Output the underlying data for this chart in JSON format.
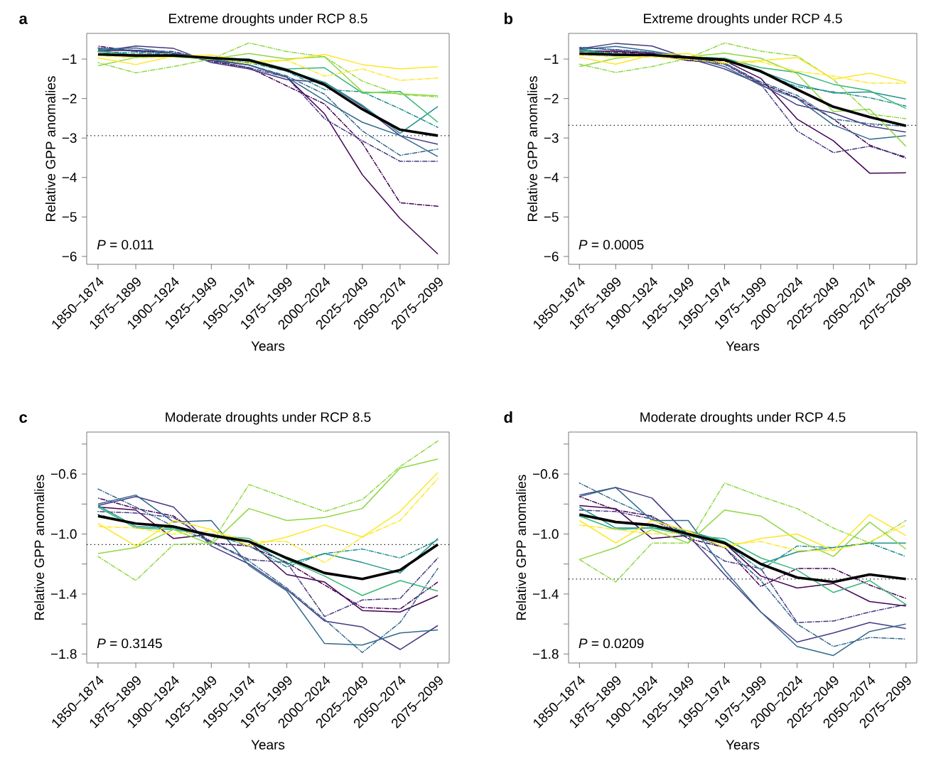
{
  "chart_data": [
    {
      "type": "line",
      "title": "Extreme droughts under RCP 8.5",
      "xlabel": "Years",
      "ylabel": "Relative GPP anomalies",
      "annotations": [
        "a",
        "*P* = 0.011"
      ],
      "categories": [
        "1850–1874",
        "1875–1899",
        "1900–1924",
        "1925–1949",
        "1950–1974",
        "1975–1999",
        "2000–2024",
        "2025–2049",
        "2050–2074",
        "2075–2099"
      ],
      "ylim": [
        -6.2,
        -0.35
      ],
      "yticks": [
        {
          "value": -1,
          "label": "−1"
        },
        {
          "value": -2,
          "label": "−2"
        },
        {
          "value": -3,
          "label": "−3"
        },
        {
          "value": -4,
          "label": "−4"
        },
        {
          "value": -5,
          "label": "−5"
        },
        {
          "value": -6,
          "label": "−6"
        }
      ],
      "ref_lines": [
        {
          "axis": "y",
          "value": -2.94,
          "line_style": "dotted",
          "color": "#000000"
        }
      ],
      "series": [
        {
          "color": "#440154",
          "line_style": "solid",
          "values": [
            -0.78,
            -0.78,
            -0.85,
            -1.03,
            -1.15,
            -1.46,
            -2.39,
            -3.93,
            -5.04,
            -5.94
          ]
        },
        {
          "color": "#440154",
          "line_style": "dashdot",
          "values": [
            -0.67,
            -0.81,
            -0.85,
            -1.06,
            -1.22,
            -1.68,
            -2.14,
            -3.13,
            -4.64,
            -4.73
          ]
        },
        {
          "color": "#443A83",
          "line_style": "solid",
          "values": [
            -0.81,
            -0.67,
            -0.73,
            -1.09,
            -1.25,
            -1.52,
            -1.59,
            -2.2,
            -2.94,
            -3.16
          ]
        },
        {
          "color": "#443A83",
          "line_style": "dashdot",
          "values": [
            -0.72,
            -0.78,
            -0.81,
            -1.03,
            -1.22,
            -1.46,
            -2.51,
            -3.07,
            -3.59,
            -3.59
          ]
        },
        {
          "color": "#31688E",
          "line_style": "solid",
          "values": [
            -0.75,
            -0.72,
            -0.85,
            -1.0,
            -1.15,
            -1.46,
            -2.05,
            -2.6,
            -2.94,
            -3.47
          ]
        },
        {
          "color": "#31688E",
          "line_style": "dashdot",
          "values": [
            -0.72,
            -0.81,
            -0.85,
            -1.03,
            -1.15,
            -1.43,
            -1.89,
            -2.82,
            -3.44,
            -3.28
          ]
        },
        {
          "color": "#21908C",
          "line_style": "solid",
          "values": [
            -0.78,
            -0.91,
            -0.91,
            -0.97,
            -1.0,
            -1.28,
            -1.59,
            -2.17,
            -2.88,
            -2.2
          ]
        },
        {
          "color": "#21908C",
          "line_style": "dashdot",
          "values": [
            -0.81,
            -0.85,
            -0.88,
            -1.0,
            -1.09,
            -1.31,
            -1.77,
            -1.83,
            -2.26,
            -2.73
          ]
        },
        {
          "color": "#35B779",
          "line_style": "solid",
          "values": [
            -0.81,
            -0.96,
            -0.94,
            -1.0,
            -1.0,
            -1.25,
            -1.22,
            -1.86,
            -1.82,
            -2.6
          ]
        },
        {
          "color": "#8FD744",
          "line_style": "solid",
          "values": [
            -1.17,
            -0.96,
            -0.94,
            -1.0,
            -0.86,
            -1.0,
            -0.94,
            -1.83,
            -1.88,
            -1.93
          ]
        },
        {
          "color": "#8FD744",
          "line_style": "dashdot",
          "values": [
            -1.09,
            -1.35,
            -1.19,
            -1.0,
            -0.59,
            -0.81,
            -0.94,
            -1.56,
            -1.9,
            -1.96
          ]
        },
        {
          "color": "#FDE725",
          "line_style": "solid",
          "values": [
            -0.97,
            -1.14,
            -0.92,
            -0.9,
            -1.06,
            -1.03,
            -0.88,
            -1.14,
            -1.25,
            -1.19
          ]
        },
        {
          "color": "#FDE725",
          "line_style": "dashdot",
          "values": [
            -0.91,
            -0.97,
            -0.94,
            -0.97,
            -1.12,
            -1.03,
            -1.43,
            -1.25,
            -1.54,
            -1.48
          ]
        },
        {
          "color": "#000000",
          "line_style": "solid",
          "values": [
            -0.88,
            -0.91,
            -0.91,
            -0.97,
            -1.03,
            -1.28,
            -1.65,
            -2.27,
            -2.79,
            -2.94
          ]
        }
      ]
    },
    {
      "type": "line",
      "title": "Extreme droughts under RCP 4.5",
      "xlabel": "Years",
      "ylabel": "Relative GPP anomalies",
      "annotations": [
        "b",
        "*P* = 0.0005"
      ],
      "categories": [
        "1850–1874",
        "1875–1899",
        "1900–1924",
        "1925–1949",
        "1950–1974",
        "1975–1999",
        "2000–2024",
        "2025–2049",
        "2050–2074",
        "2075–2099"
      ],
      "ylim": [
        -6.2,
        -0.35
      ],
      "yticks": [
        {
          "value": -1,
          "label": "−1"
        },
        {
          "value": -2,
          "label": "−2"
        },
        {
          "value": -3,
          "label": "−3"
        },
        {
          "value": -4,
          "label": "−4"
        },
        {
          "value": -5,
          "label": "−5"
        },
        {
          "value": -6,
          "label": "−6"
        }
      ],
      "ref_lines": [
        {
          "axis": "y",
          "value": -2.68,
          "line_style": "dotted",
          "color": "#000000"
        }
      ],
      "series": [
        {
          "color": "#440154",
          "line_style": "solid",
          "values": [
            -0.8,
            -0.8,
            -0.86,
            -1.04,
            -1.04,
            -1.49,
            -2.52,
            -3.07,
            -3.89,
            -3.88
          ]
        },
        {
          "color": "#440154",
          "line_style": "dashdot",
          "values": [
            -0.77,
            -0.83,
            -0.86,
            -1.04,
            -1.1,
            -1.61,
            -1.98,
            -2.52,
            -3.18,
            -3.51
          ]
        },
        {
          "color": "#443A83",
          "line_style": "solid",
          "values": [
            -0.74,
            -0.6,
            -0.67,
            -0.98,
            -1.25,
            -1.64,
            -2.16,
            -2.37,
            -2.7,
            -2.85
          ]
        },
        {
          "color": "#443A83",
          "line_style": "dashdot",
          "values": [
            -0.71,
            -0.77,
            -0.83,
            -1.01,
            -1.13,
            -1.64,
            -2.82,
            -3.37,
            -3.21,
            -3.48
          ]
        },
        {
          "color": "#31688E",
          "line_style": "solid",
          "values": [
            -0.76,
            -0.68,
            -0.8,
            -0.95,
            -1.19,
            -1.67,
            -2.0,
            -2.67,
            -3.03,
            -2.94
          ]
        },
        {
          "color": "#31688E",
          "line_style": "dashdot",
          "values": [
            -0.7,
            -0.76,
            -0.83,
            -0.98,
            -1.1,
            -1.58,
            -1.92,
            -2.52,
            -2.64,
            -2.7
          ]
        },
        {
          "color": "#21908C",
          "line_style": "solid",
          "values": [
            -0.77,
            -0.89,
            -0.89,
            -0.95,
            -0.98,
            -1.31,
            -1.64,
            -1.86,
            -1.83,
            -2.01
          ]
        },
        {
          "color": "#21908C",
          "line_style": "dashdot",
          "values": [
            -0.76,
            -0.86,
            -0.9,
            -0.98,
            -1.01,
            -1.34,
            -1.7,
            -1.83,
            -1.98,
            -2.19
          ]
        },
        {
          "color": "#35B779",
          "line_style": "solid",
          "values": [
            -0.78,
            -0.92,
            -0.89,
            -0.95,
            -0.98,
            -1.22,
            -1.34,
            -1.64,
            -1.8,
            -2.25
          ]
        },
        {
          "color": "#8FD744",
          "line_style": "solid",
          "values": [
            -1.19,
            -0.98,
            -0.89,
            -0.94,
            -0.85,
            -0.98,
            -1.37,
            -2.33,
            -2.27,
            -3.21
          ]
        },
        {
          "color": "#8FD744",
          "line_style": "dashdot",
          "values": [
            -1.13,
            -1.34,
            -1.19,
            -0.98,
            -0.59,
            -0.8,
            -0.92,
            -1.52,
            -2.39,
            -2.51
          ]
        },
        {
          "color": "#FDE725",
          "line_style": "solid",
          "values": [
            -0.96,
            -1.13,
            -0.9,
            -0.86,
            -1.1,
            -1.04,
            -0.96,
            -1.51,
            -1.36,
            -1.58
          ]
        },
        {
          "color": "#FDE725",
          "line_style": "dashdot",
          "values": [
            -0.9,
            -0.94,
            -0.95,
            -1.01,
            -1.1,
            -1.07,
            -1.31,
            -1.43,
            -1.61,
            -1.61
          ]
        },
        {
          "color": "#000000",
          "line_style": "solid",
          "values": [
            -0.86,
            -0.89,
            -0.9,
            -0.96,
            -1.02,
            -1.31,
            -1.77,
            -2.21,
            -2.47,
            -2.69
          ]
        }
      ]
    },
    {
      "type": "line",
      "title": "Moderate droughts under RCP 8.5",
      "xlabel": "Years",
      "ylabel": "Relative GPP anomalies",
      "annotations": [
        "c",
        "*P* = 0.3145"
      ],
      "categories": [
        "1850–1874",
        "1875–1899",
        "1900–1924",
        "1925–1949",
        "1950–1974",
        "1975–1999",
        "2000–2024",
        "2025–2049",
        "2050–2074",
        "2075–2099"
      ],
      "ylim": [
        -1.86,
        -0.32
      ],
      "yticks": [
        {
          "value": -0.4,
          "label": null
        },
        {
          "value": -0.6,
          "label": "−0.6"
        },
        {
          "value": -0.8,
          "label": null
        },
        {
          "value": -1.0,
          "label": "−1.0"
        },
        {
          "value": -1.2,
          "label": null
        },
        {
          "value": -1.4,
          "label": "−1.4"
        },
        {
          "value": -1.6,
          "label": null
        },
        {
          "value": -1.8,
          "label": "−1.8"
        }
      ],
      "ref_lines": [
        {
          "axis": "y",
          "value": -1.07,
          "line_style": "dotted",
          "color": "#000000"
        }
      ],
      "series": [
        {
          "color": "#440154",
          "line_style": "solid",
          "values": [
            -0.82,
            -0.84,
            -1.03,
            -1.0,
            -1.05,
            -1.27,
            -1.32,
            -1.51,
            -1.52,
            -1.41
          ]
        },
        {
          "color": "#440154",
          "line_style": "dashdot",
          "values": [
            -0.76,
            -0.83,
            -0.88,
            -1.06,
            -1.08,
            -1.19,
            -1.34,
            -1.49,
            -1.5,
            -1.32
          ]
        },
        {
          "color": "#443A83",
          "line_style": "solid",
          "values": [
            -0.81,
            -0.75,
            -0.82,
            -1.08,
            -1.2,
            -1.37,
            -1.58,
            -1.62,
            -1.77,
            -1.61
          ]
        },
        {
          "color": "#443A83",
          "line_style": "dashdot",
          "values": [
            -0.85,
            -0.86,
            -0.89,
            -1.05,
            -1.17,
            -1.19,
            -1.55,
            -1.44,
            -1.43,
            -1.16
          ]
        },
        {
          "color": "#31688E",
          "line_style": "solid",
          "values": [
            -0.8,
            -0.74,
            -0.92,
            -0.91,
            -1.21,
            -1.38,
            -1.73,
            -1.74,
            -1.66,
            -1.64
          ]
        },
        {
          "color": "#31688E",
          "line_style": "dashdot",
          "values": [
            -0.7,
            -0.82,
            -0.95,
            -1.05,
            -1.18,
            -1.36,
            -1.57,
            -1.79,
            -1.59,
            -1.23
          ]
        },
        {
          "color": "#21908C",
          "line_style": "solid",
          "values": [
            -0.81,
            -0.95,
            -0.96,
            -1.01,
            -1.05,
            -1.2,
            -1.13,
            -1.19,
            -1.26,
            -1.03
          ]
        },
        {
          "color": "#21908C",
          "line_style": "dashdot",
          "values": [
            -0.87,
            -0.93,
            -0.96,
            -1.0,
            -1.08,
            -1.22,
            -1.13,
            -1.1,
            -1.16,
            -1.04
          ]
        },
        {
          "color": "#35B779",
          "line_style": "solid",
          "values": [
            -0.82,
            -0.96,
            -0.97,
            -1.01,
            -1.03,
            -1.17,
            -1.28,
            -1.41,
            -1.31,
            -1.38
          ]
        },
        {
          "color": "#8FD744",
          "line_style": "solid",
          "values": [
            -1.13,
            -1.09,
            -0.97,
            -1.07,
            -0.83,
            -0.91,
            -0.89,
            -0.83,
            -0.56,
            -0.5
          ]
        },
        {
          "color": "#8FD744",
          "line_style": "dashdot",
          "values": [
            -1.15,
            -1.31,
            -1.07,
            -1.06,
            -0.67,
            -0.76,
            -0.85,
            -0.77,
            -0.55,
            -0.38
          ]
        },
        {
          "color": "#FDE725",
          "line_style": "solid",
          "values": [
            -0.93,
            -1.08,
            -0.91,
            -0.97,
            -1.08,
            -1.02,
            -0.94,
            -1.02,
            -0.85,
            -0.59
          ]
        },
        {
          "color": "#FDE725",
          "line_style": "dashdot",
          "values": [
            -0.95,
            -0.96,
            -1.0,
            -0.98,
            -1.05,
            -1.05,
            -1.19,
            -1.02,
            -0.91,
            -0.63
          ]
        },
        {
          "color": "#000000",
          "line_style": "solid",
          "values": [
            -0.88,
            -0.93,
            -0.95,
            -1.01,
            -1.05,
            -1.16,
            -1.26,
            -1.3,
            -1.24,
            -1.07
          ]
        }
      ]
    },
    {
      "type": "line",
      "title": "Moderate droughts under RCP 4.5",
      "xlabel": "Years",
      "ylabel": "Relative GPP anomalies",
      "annotations": [
        "d",
        "*P* = 0.0209"
      ],
      "categories": [
        "1850–1874",
        "1875–1899",
        "1900–1924",
        "1925–1949",
        "1950–1974",
        "1975–1999",
        "2000–2024",
        "2025–2049",
        "2050–2074",
        "2075–2099"
      ],
      "ylim": [
        -1.86,
        -0.32
      ],
      "yticks": [
        {
          "value": -0.4,
          "label": null
        },
        {
          "value": -0.6,
          "label": "−0.6"
        },
        {
          "value": -0.8,
          "label": null
        },
        {
          "value": -1.0,
          "label": "−1.0"
        },
        {
          "value": -1.2,
          "label": null
        },
        {
          "value": -1.4,
          "label": "−1.4"
        },
        {
          "value": -1.6,
          "label": null
        },
        {
          "value": -1.8,
          "label": "−1.8"
        }
      ],
      "ref_lines": [
        {
          "axis": "y",
          "value": -1.3,
          "line_style": "dotted",
          "color": "#000000"
        }
      ],
      "series": [
        {
          "color": "#440154",
          "line_style": "solid",
          "values": [
            -0.81,
            -0.83,
            -1.03,
            -1.01,
            -1.06,
            -1.28,
            -1.36,
            -1.33,
            -1.45,
            -1.48
          ]
        },
        {
          "color": "#440154",
          "line_style": "dashdot",
          "values": [
            -0.75,
            -0.84,
            -0.88,
            -1.03,
            -1.09,
            -1.35,
            -1.23,
            -1.23,
            -1.34,
            -1.43
          ]
        },
        {
          "color": "#443A83",
          "line_style": "solid",
          "values": [
            -0.74,
            -0.69,
            -0.76,
            -1.01,
            -1.27,
            -1.52,
            -1.72,
            -1.66,
            -1.59,
            -1.63
          ]
        },
        {
          "color": "#443A83",
          "line_style": "dashdot",
          "values": [
            -0.84,
            -0.85,
            -0.9,
            -1.03,
            -1.18,
            -1.23,
            -1.59,
            -1.58,
            -1.52,
            -1.47
          ]
        },
        {
          "color": "#31688E",
          "line_style": "solid",
          "values": [
            -0.75,
            -0.69,
            -0.91,
            -0.91,
            -1.24,
            -1.52,
            -1.75,
            -1.81,
            -1.65,
            -1.6
          ]
        },
        {
          "color": "#31688E",
          "line_style": "dashdot",
          "values": [
            -0.66,
            -0.78,
            -0.89,
            -1.0,
            -1.09,
            -1.31,
            -1.6,
            -1.75,
            -1.69,
            -1.7
          ]
        },
        {
          "color": "#21908C",
          "line_style": "solid",
          "values": [
            -0.82,
            -0.96,
            -0.96,
            -0.98,
            -1.05,
            -1.2,
            -1.12,
            -1.09,
            -1.06,
            -1.06
          ]
        },
        {
          "color": "#21908C",
          "line_style": "dashdot",
          "values": [
            -0.88,
            -0.92,
            -0.95,
            -0.98,
            -1.06,
            -1.24,
            -1.08,
            -1.09,
            -1.06,
            -1.15
          ]
        },
        {
          "color": "#35B779",
          "line_style": "solid",
          "values": [
            -0.88,
            -0.97,
            -0.96,
            -1.01,
            -1.03,
            -1.16,
            -1.24,
            -1.39,
            -1.31,
            -1.47
          ]
        },
        {
          "color": "#8FD744",
          "line_style": "solid",
          "values": [
            -1.17,
            -1.09,
            -0.97,
            -1.06,
            -0.84,
            -0.88,
            -1.04,
            -1.15,
            -0.92,
            -1.1
          ]
        },
        {
          "color": "#8FD744",
          "line_style": "dashdot",
          "values": [
            -1.17,
            -1.32,
            -1.06,
            -1.06,
            -0.66,
            -0.75,
            -0.83,
            -0.96,
            -1.06,
            -0.91
          ]
        },
        {
          "color": "#FDE725",
          "line_style": "solid",
          "values": [
            -0.91,
            -1.06,
            -0.91,
            -0.98,
            -1.09,
            -1.03,
            -1.0,
            -1.11,
            -0.87,
            -1.01
          ]
        },
        {
          "color": "#FDE725",
          "line_style": "dashdot",
          "values": [
            -0.94,
            -0.97,
            -1.0,
            -0.99,
            -1.07,
            -1.05,
            -1.11,
            -1.11,
            -1.05,
            -0.94
          ]
        },
        {
          "color": "#000000",
          "line_style": "solid",
          "values": [
            -0.87,
            -0.92,
            -0.94,
            -1.0,
            -1.06,
            -1.2,
            -1.29,
            -1.32,
            -1.27,
            -1.3
          ]
        }
      ]
    }
  ]
}
